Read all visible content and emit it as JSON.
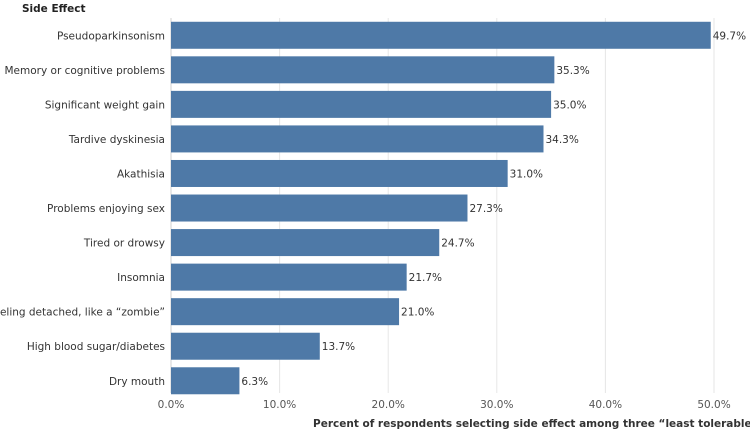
{
  "chart_data": {
    "type": "bar",
    "orientation": "horizontal",
    "title": "",
    "ylabel": "Side Effect",
    "xlabel": "Percent of respondents selecting side effect among three “least tolerable”",
    "xlabel_suffix": "✶ ☱",
    "categories": [
      "Pseudoparkinsonism",
      "Memory or cognitive problems",
      "Significant weight gain",
      "Tardive dyskinesia",
      "Akathisia",
      "Problems enjoying sex",
      "Tired or drowsy",
      "Insomnia",
      "Feeling detached, like a “zombie”",
      "High blood sugar/diabetes",
      "Dry mouth"
    ],
    "values": [
      49.7,
      35.3,
      35.0,
      34.3,
      31.0,
      27.3,
      24.7,
      21.7,
      21.0,
      13.7,
      6.3
    ],
    "value_labels": [
      "49.7%",
      "35.3%",
      "35.0%",
      "34.3%",
      "31.0%",
      "27.3%",
      "24.7%",
      "21.7%",
      "21.0%",
      "13.7%",
      "6.3%"
    ],
    "xlim": [
      0,
      50
    ],
    "xticks": [
      0,
      10,
      20,
      30,
      40,
      50
    ],
    "xtick_labels": [
      "0.0%",
      "10.0%",
      "20.0%",
      "30.0%",
      "40.0%",
      "50.0%"
    ],
    "grid": true,
    "bar_color": "#4e79a7"
  }
}
